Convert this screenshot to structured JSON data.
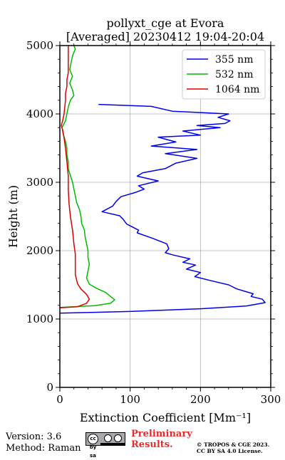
{
  "chart_data": {
    "type": "line",
    "title": "pollyxt_cge at Evora",
    "subtitle": "[Averaged] 20230412 19:04-20:04",
    "xlabel": "Extinction Coefficient [Mm⁻¹]",
    "ylabel": "Height (m)",
    "xlim": [
      0,
      300
    ],
    "ylim": [
      0,
      5000
    ],
    "x_ticks": [
      0,
      100,
      200,
      300
    ],
    "y_ticks": [
      0,
      1000,
      2000,
      3000,
      4000,
      5000
    ],
    "grid": true,
    "legend_position": "top-right",
    "series": [
      {
        "name": "355 nm",
        "color": "#0000ee",
        "points": [
          [
            0,
            1085
          ],
          [
            100,
            1110
          ],
          [
            200,
            1150
          ],
          [
            265,
            1190
          ],
          [
            292,
            1240
          ],
          [
            288,
            1290
          ],
          [
            272,
            1330
          ],
          [
            275,
            1370
          ],
          [
            265,
            1400
          ],
          [
            252,
            1440
          ],
          [
            240,
            1500
          ],
          [
            215,
            1560
          ],
          [
            192,
            1620
          ],
          [
            200,
            1680
          ],
          [
            180,
            1730
          ],
          [
            193,
            1790
          ],
          [
            175,
            1830
          ],
          [
            185,
            1880
          ],
          [
            160,
            1940
          ],
          [
            150,
            1970
          ],
          [
            155,
            2030
          ],
          [
            152,
            2100
          ],
          [
            132,
            2180
          ],
          [
            110,
            2260
          ],
          [
            112,
            2300
          ],
          [
            95,
            2390
          ],
          [
            90,
            2460
          ],
          [
            85,
            2510
          ],
          [
            60,
            2570
          ],
          [
            75,
            2650
          ],
          [
            80,
            2720
          ],
          [
            87,
            2790
          ],
          [
            107,
            2850
          ],
          [
            120,
            2900
          ],
          [
            112,
            2950
          ],
          [
            140,
            3020
          ],
          [
            110,
            3090
          ],
          [
            118,
            3140
          ],
          [
            150,
            3200
          ],
          [
            165,
            3280
          ],
          [
            195,
            3350
          ],
          [
            150,
            3420
          ],
          [
            195,
            3480
          ],
          [
            130,
            3530
          ],
          [
            165,
            3590
          ],
          [
            140,
            3660
          ],
          [
            200,
            3690
          ],
          [
            175,
            3750
          ],
          [
            228,
            3800
          ],
          [
            195,
            3830
          ],
          [
            235,
            3860
          ],
          [
            242,
            3900
          ],
          [
            225,
            3950
          ],
          [
            240,
            4000
          ],
          [
            160,
            4040
          ],
          [
            130,
            4110
          ],
          [
            55,
            4140
          ]
        ]
      },
      {
        "name": "532 nm",
        "color": "#00bb00",
        "points": [
          [
            0,
            1170
          ],
          [
            50,
            1195
          ],
          [
            72,
            1230
          ],
          [
            78,
            1280
          ],
          [
            72,
            1330
          ],
          [
            65,
            1390
          ],
          [
            52,
            1450
          ],
          [
            42,
            1510
          ],
          [
            38,
            1600
          ],
          [
            40,
            1700
          ],
          [
            42,
            1800
          ],
          [
            40,
            1900
          ],
          [
            40,
            2000
          ],
          [
            38,
            2100
          ],
          [
            36,
            2200
          ],
          [
            35,
            2300
          ],
          [
            31,
            2400
          ],
          [
            30,
            2500
          ],
          [
            28,
            2600
          ],
          [
            24,
            2700
          ],
          [
            22,
            2800
          ],
          [
            20,
            2900
          ],
          [
            18,
            3000
          ],
          [
            15,
            3100
          ],
          [
            12,
            3200
          ],
          [
            12,
            3300
          ],
          [
            10,
            3400
          ],
          [
            10,
            3500
          ],
          [
            8,
            3600
          ],
          [
            5,
            3700
          ],
          [
            3,
            3800
          ],
          [
            8,
            3900
          ],
          [
            10,
            4000
          ],
          [
            12,
            4100
          ],
          [
            15,
            4200
          ],
          [
            20,
            4270
          ],
          [
            18,
            4350
          ],
          [
            14,
            4450
          ],
          [
            18,
            4550
          ],
          [
            14,
            4650
          ],
          [
            16,
            4750
          ],
          [
            18,
            4850
          ],
          [
            22,
            4950
          ],
          [
            20,
            5000
          ]
        ]
      },
      {
        "name": "1064 nm",
        "color": "#dd0000",
        "points": [
          [
            0,
            1165
          ],
          [
            25,
            1180
          ],
          [
            38,
            1230
          ],
          [
            42,
            1290
          ],
          [
            38,
            1360
          ],
          [
            30,
            1440
          ],
          [
            25,
            1520
          ],
          [
            22,
            1650
          ],
          [
            22,
            1800
          ],
          [
            22,
            1950
          ],
          [
            20,
            2100
          ],
          [
            18,
            2300
          ],
          [
            15,
            2500
          ],
          [
            13,
            2700
          ],
          [
            12,
            2900
          ],
          [
            12,
            3100
          ],
          [
            10,
            3300
          ],
          [
            8,
            3500
          ],
          [
            6,
            3650
          ],
          [
            4,
            3770
          ],
          [
            2,
            3830
          ],
          [
            4,
            3900
          ],
          [
            6,
            4000
          ],
          [
            7,
            4100
          ],
          [
            8,
            4200
          ],
          [
            8,
            4300
          ],
          [
            10,
            4400
          ],
          [
            10,
            4500
          ],
          [
            12,
            4600
          ],
          [
            12,
            4700
          ],
          [
            12,
            4800
          ],
          [
            12,
            4900
          ],
          [
            12,
            5000
          ]
        ]
      }
    ]
  },
  "footer": {
    "version": "Version: 3.6",
    "method": "Method: Raman",
    "badge": "cc by sa",
    "preliminary_line1": "Preliminary",
    "preliminary_line2": "Results.",
    "copyright_line1": "© TROPOS & CGE 2023.",
    "copyright_line2": "CC BY SA 4.0 License."
  }
}
